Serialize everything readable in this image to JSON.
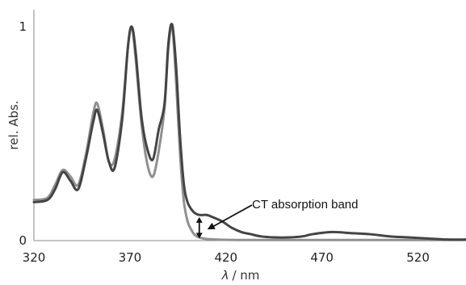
{
  "chart_data": {
    "type": "line",
    "title": "",
    "xlabel": "λ / nm",
    "xlabel_parts": {
      "symbol": "λ",
      "unit": "/ nm"
    },
    "ylabel": "rel. Abs.",
    "xlim": [
      320,
      545
    ],
    "ylim": [
      0,
      1.08
    ],
    "x_ticks": [
      320,
      370,
      420,
      470,
      520
    ],
    "y_ticks": [
      0,
      1
    ],
    "grid": false,
    "legend": "none",
    "annotation": {
      "text": "CT absorption band",
      "x": 412,
      "y_low": 0.01,
      "y_high": 0.11
    },
    "series": [
      {
        "color": "#444444",
        "points": [
          [
            320,
            0.18
          ],
          [
            327,
            0.19
          ],
          [
            331,
            0.24
          ],
          [
            335,
            0.32
          ],
          [
            339,
            0.28
          ],
          [
            343,
            0.24
          ],
          [
            347,
            0.38
          ],
          [
            351,
            0.56
          ],
          [
            353,
            0.61
          ],
          [
            356,
            0.5
          ],
          [
            359,
            0.37
          ],
          [
            362,
            0.34
          ],
          [
            366,
            0.57
          ],
          [
            369,
            0.91
          ],
          [
            371,
            1.0
          ],
          [
            373,
            0.88
          ],
          [
            376,
            0.58
          ],
          [
            379,
            0.43
          ],
          [
            382,
            0.38
          ],
          [
            385,
            0.52
          ],
          [
            388,
            0.64
          ],
          [
            390,
            0.92
          ],
          [
            392,
            1.01
          ],
          [
            394,
            0.82
          ],
          [
            396,
            0.5
          ],
          [
            398,
            0.27
          ],
          [
            400,
            0.18
          ],
          [
            403,
            0.135
          ],
          [
            406,
            0.12
          ],
          [
            410,
            0.12
          ],
          [
            413,
            0.11
          ],
          [
            418,
            0.09
          ],
          [
            423,
            0.06
          ],
          [
            428,
            0.04
          ],
          [
            433,
            0.03
          ],
          [
            438,
            0.02
          ],
          [
            445,
            0.015
          ],
          [
            453,
            0.015
          ],
          [
            460,
            0.02
          ],
          [
            465,
            0.03
          ],
          [
            475,
            0.04
          ],
          [
            485,
            0.035
          ],
          [
            495,
            0.03
          ],
          [
            505,
            0.02
          ],
          [
            515,
            0.015
          ],
          [
            525,
            0.01
          ],
          [
            535,
            0.005
          ],
          [
            545,
            0.005
          ]
        ]
      },
      {
        "color": "#909090",
        "points": [
          [
            320,
            0.19
          ],
          [
            327,
            0.2
          ],
          [
            331,
            0.26
          ],
          [
            335,
            0.33
          ],
          [
            339,
            0.3
          ],
          [
            343,
            0.26
          ],
          [
            347,
            0.4
          ],
          [
            351,
            0.6
          ],
          [
            353,
            0.64
          ],
          [
            356,
            0.52
          ],
          [
            359,
            0.37
          ],
          [
            362,
            0.38
          ],
          [
            366,
            0.6
          ],
          [
            369,
            0.91
          ],
          [
            371,
            1.0
          ],
          [
            373,
            0.85
          ],
          [
            376,
            0.55
          ],
          [
            379,
            0.36
          ],
          [
            382,
            0.3
          ],
          [
            385,
            0.42
          ],
          [
            388,
            0.62
          ],
          [
            390,
            0.9
          ],
          [
            392,
            1.0
          ],
          [
            394,
            0.75
          ],
          [
            396,
            0.42
          ],
          [
            398,
            0.19
          ],
          [
            400,
            0.09
          ],
          [
            402,
            0.05
          ],
          [
            404,
            0.025
          ],
          [
            408,
            0.01
          ],
          [
            415,
            0.005
          ],
          [
            425,
            0.003
          ],
          [
            445,
            0.003
          ],
          [
            470,
            0.003
          ],
          [
            500,
            0.003
          ],
          [
            530,
            0.003
          ],
          [
            545,
            0.003
          ]
        ]
      }
    ]
  }
}
